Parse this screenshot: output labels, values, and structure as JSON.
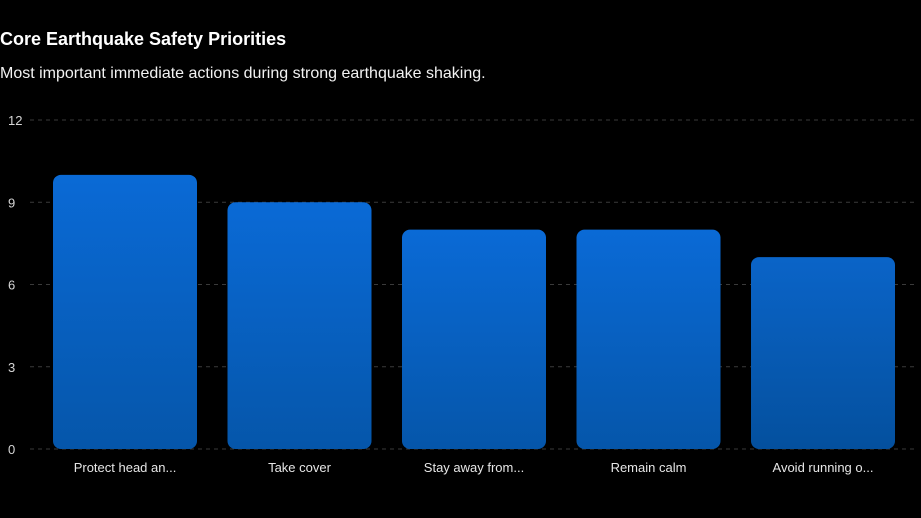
{
  "chart_data": {
    "type": "bar",
    "title": "Core Earthquake Safety Priorities",
    "subtitle": "Most important immediate actions during strong earthquake shaking.",
    "categories": [
      "Protect head an...",
      "Take cover",
      "Stay away from...",
      "Remain calm",
      "Avoid running o..."
    ],
    "values": [
      10,
      9,
      8,
      8,
      7
    ],
    "ylim": [
      0,
      12
    ],
    "yticks": [
      0,
      3,
      6,
      9,
      12
    ],
    "ytick_labels": [
      "0",
      "3",
      "6",
      "9",
      "12"
    ],
    "xlabel": "",
    "ylabel": "",
    "grid": true,
    "legend": "none",
    "colors": {
      "bar_top": "#0a6ad6",
      "bar_bottom": "#0556aa",
      "bar_last_top": "#0a64c8",
      "bar_last_bottom": "#04509e",
      "grid": "#3a3a3a",
      "background": "#000000"
    }
  }
}
